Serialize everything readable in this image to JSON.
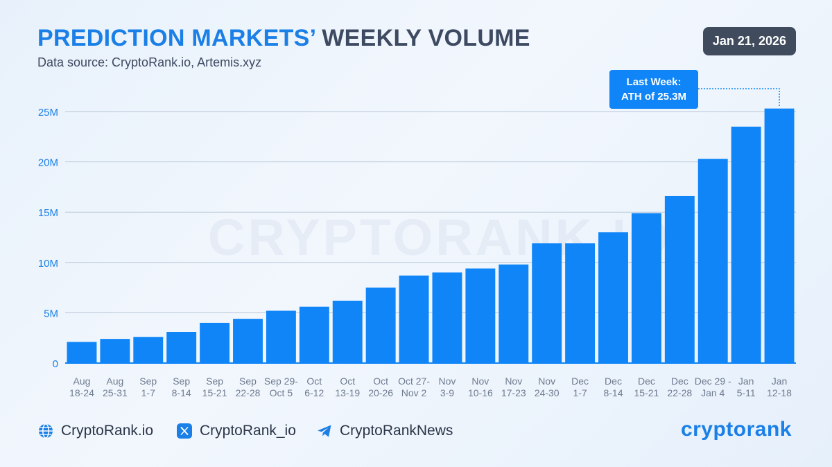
{
  "header": {
    "title_accent": "PREDICTION MARKETS’",
    "title_rest": "WEEKLY VOLUME",
    "subtitle": "Data source: CryptoRank.io, Artemis.xyz",
    "date": "Jan 21, 2026"
  },
  "watermark": "CRYPTORANK.IO",
  "callout": {
    "line1": "Last Week:",
    "line2": "ATH of 25.3M"
  },
  "colors": {
    "bar": "#0f85f8",
    "accent": "#1a7fe6",
    "title_dark": "#3d4a61",
    "badge": "#404b5e"
  },
  "chart_data": {
    "type": "bar",
    "title": "PREDICTION MARKETS’ WEEKLY VOLUME",
    "xlabel": "",
    "ylabel": "",
    "ylim": [
      0,
      25000000
    ],
    "yticks": [
      0,
      5000000,
      10000000,
      15000000,
      20000000,
      25000000
    ],
    "ytick_labels": [
      "0",
      "5M",
      "10M",
      "15M",
      "20M",
      "25M"
    ],
    "grid": true,
    "categories": [
      [
        "Aug",
        "18-24"
      ],
      [
        "Aug",
        "25-31"
      ],
      [
        "Sep",
        "1-7"
      ],
      [
        "Sep",
        "8-14"
      ],
      [
        "Sep",
        "15-21"
      ],
      [
        "Sep",
        "22-28"
      ],
      [
        "Sep 29-",
        "Oct 5"
      ],
      [
        "Oct",
        "6-12"
      ],
      [
        "Oct",
        "13-19"
      ],
      [
        "Oct",
        "20-26"
      ],
      [
        "Oct 27-",
        "Nov 2"
      ],
      [
        "Nov",
        "3-9"
      ],
      [
        "Nov",
        "10-16"
      ],
      [
        "Nov",
        "17-23"
      ],
      [
        "Nov",
        "24-30"
      ],
      [
        "Dec",
        "1-7"
      ],
      [
        "Dec",
        "8-14"
      ],
      [
        "Dec",
        "15-21"
      ],
      [
        "Dec",
        "22-28"
      ],
      [
        "Dec 29 -",
        "Jan 4"
      ],
      [
        "Jan",
        "5-11"
      ],
      [
        "Jan",
        "12-18"
      ]
    ],
    "values": [
      2100000,
      2400000,
      2600000,
      3100000,
      4000000,
      4400000,
      5200000,
      5600000,
      6200000,
      7500000,
      8700000,
      9000000,
      9400000,
      9800000,
      11900000,
      11900000,
      13000000,
      14900000,
      16600000,
      20300000,
      23500000,
      25300000
    ]
  },
  "footer": {
    "website": "CryptoRank.io",
    "twitter": "CryptoRank_io",
    "telegram": "CryptoRankNews",
    "logo": "cryptorank"
  }
}
